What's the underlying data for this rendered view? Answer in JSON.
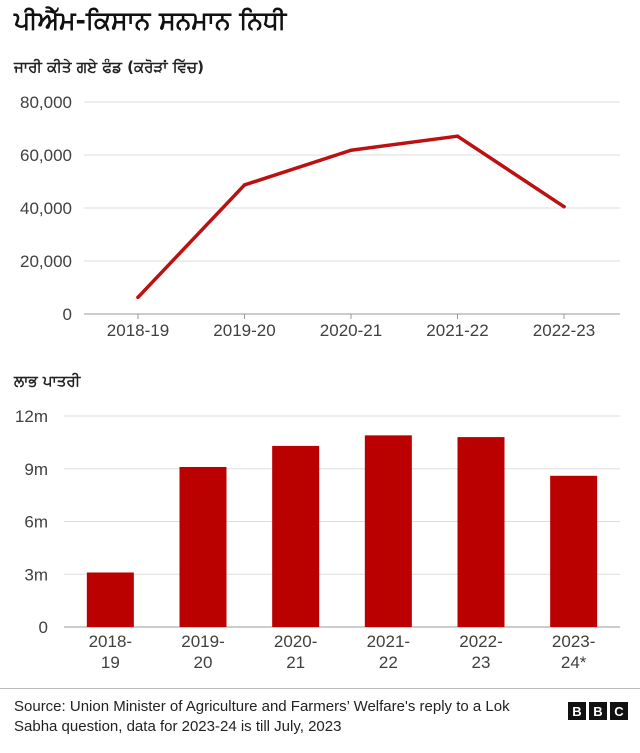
{
  "title": "ਪੀਐੱਮ-ਕਿਸਾਨ ਸਨਮਾਨ ਨਿਧੀ",
  "source": "Source: Union Minister of Agriculture and Farmers’ Welfare's reply to a Lok Sabha question, data for 2023-24 is till July, 2023",
  "logo": [
    "B",
    "B",
    "C"
  ],
  "chart_data": [
    {
      "type": "line",
      "title": "ਜਾਰੀ ਕੀਤੇ ਗਏ ਫੰਡ (ਕਰੋੜਾਂ ਵਿੱਚ)",
      "categories": [
        "2018-19",
        "2019-20",
        "2020-21",
        "2021-22",
        "2022-23"
      ],
      "series": [
        {
          "values": [
            6300,
            48700,
            61800,
            67100,
            40500
          ]
        }
      ],
      "ylim": [
        0,
        80000
      ],
      "yticks": [
        0,
        20000,
        40000,
        60000,
        80000
      ],
      "ytick_labels": [
        "0",
        "20,000",
        "40,000",
        "60,000",
        "80,000"
      ],
      "grid": true,
      "color": "#bb1111"
    },
    {
      "type": "bar",
      "title": "ਲਾਭ ਪਾਤਰੀ",
      "categories": [
        "2018-19",
        "2019-20",
        "2020-21",
        "2021-22",
        "2022-23",
        "2023-24*"
      ],
      "category_lines": [
        [
          "2018-",
          "19"
        ],
        [
          "2019-",
          "20"
        ],
        [
          "2020-",
          "21"
        ],
        [
          "2021-",
          "22"
        ],
        [
          "2022-",
          "23"
        ],
        [
          "2023-",
          "24*"
        ]
      ],
      "values": [
        3.1,
        9.1,
        10.3,
        10.9,
        10.8,
        8.6
      ],
      "ylim": [
        0,
        12
      ],
      "yticks": [
        0,
        3,
        6,
        9,
        12
      ],
      "ytick_labels": [
        "0",
        "3m",
        "6m",
        "9m",
        "12m"
      ],
      "grid": true,
      "color": "#bb0000"
    }
  ]
}
